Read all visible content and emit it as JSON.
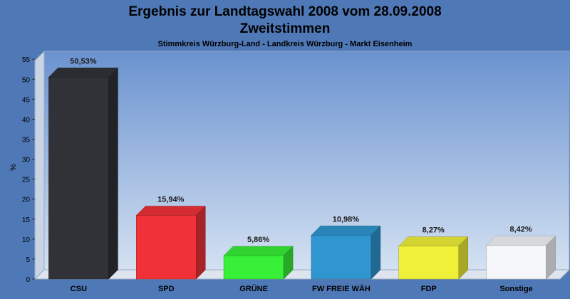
{
  "chart_data": {
    "type": "bar",
    "title": "Ergebnis zur Landtagswahl 2008 vom 28.09.2008",
    "title2": "Zweitstimmen",
    "subtitle": "Stimmkreis Würzburg-Land - Landkreis Würzburg - Markt Eisenheim",
    "ylabel": "%",
    "xlabel": "",
    "ylim": [
      0,
      57
    ],
    "yticks": [
      0,
      5,
      10,
      15,
      20,
      25,
      30,
      35,
      40,
      45,
      50,
      55
    ],
    "grid": false,
    "categories": [
      "CSU",
      "SPD",
      "GRÜNE",
      "FW FREIE WÄH",
      "FDP",
      "Sonstige"
    ],
    "values": [
      50.53,
      15.94,
      5.86,
      10.98,
      8.27,
      8.42
    ],
    "value_labels": [
      "50,53%",
      "15,94%",
      "5,86%",
      "10,98%",
      "8,27%",
      "8,42%"
    ],
    "colors": [
      "#303238",
      "#f03238",
      "#38f038",
      "#2f96d0",
      "#f0f038",
      "#f4f6fa"
    ]
  }
}
